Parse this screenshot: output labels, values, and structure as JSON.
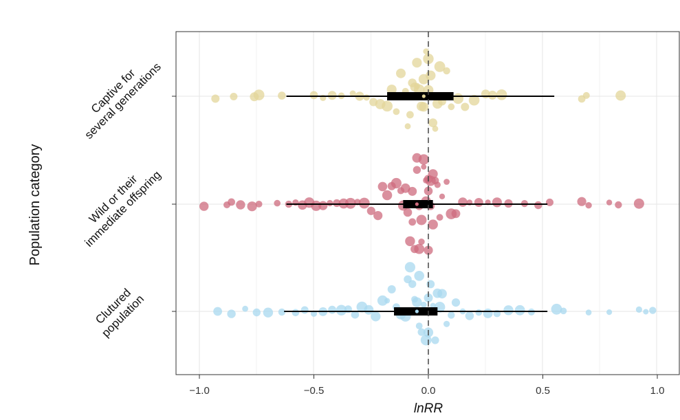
{
  "chart_data": {
    "type": "scatter",
    "subtype": "orchard-plot",
    "xlabel": "lnRR",
    "ylabel": "Population category",
    "xlim": [
      -1.1,
      1.05
    ],
    "x_ticks": [
      -1.0,
      -0.5,
      0.0,
      0.5,
      1.0
    ],
    "x_tick_labels": [
      "−1.0",
      "−0.5",
      "0.0",
      "0.5",
      "1.0"
    ],
    "grid": true,
    "reference_line": 0,
    "categories": [
      "Captive for several generations",
      "Wild or their immediate offspring",
      "Clutured population"
    ],
    "category_label_lines": [
      [
        "Captive for",
        "several generations"
      ],
      [
        "Wild or their",
        "immediate offspring"
      ],
      [
        "Clutured",
        "population"
      ]
    ],
    "series": [
      {
        "color": "#e3d59a",
        "estimate": -0.02,
        "ci": [
          -0.18,
          0.11
        ],
        "pi": [
          -0.62,
          0.55
        ],
        "points": [
          -0.93,
          -0.85,
          -0.76,
          -0.74,
          -0.64,
          -0.5,
          -0.46,
          -0.42,
          -0.38,
          -0.33,
          -0.3,
          -0.27,
          -0.24,
          -0.21,
          -0.18,
          -0.16,
          -0.14,
          -0.12,
          -0.1,
          -0.09,
          -0.08,
          -0.07,
          -0.06,
          -0.05,
          -0.05,
          -0.04,
          -0.03,
          -0.02,
          -0.02,
          -0.01,
          0.0,
          0.0,
          0.01,
          0.02,
          0.03,
          0.04,
          0.05,
          0.06,
          0.08,
          0.1,
          0.13,
          0.16,
          0.2,
          0.25,
          0.28,
          0.32,
          0.67,
          0.69,
          0.84
        ]
      },
      {
        "color": "#cd6b7d",
        "estimate": -0.05,
        "ci": [
          -0.11,
          0.02
        ],
        "pi": [
          -0.62,
          0.52
        ],
        "points": [
          -0.98,
          -0.88,
          -0.86,
          -0.82,
          -0.77,
          -0.74,
          -0.66,
          -0.61,
          -0.58,
          -0.55,
          -0.52,
          -0.49,
          -0.46,
          -0.43,
          -0.4,
          -0.37,
          -0.34,
          -0.31,
          -0.28,
          -0.25,
          -0.22,
          -0.2,
          -0.18,
          -0.16,
          -0.14,
          -0.12,
          -0.11,
          -0.1,
          -0.09,
          -0.08,
          -0.07,
          -0.07,
          -0.06,
          -0.05,
          -0.05,
          -0.04,
          -0.04,
          -0.03,
          -0.03,
          -0.02,
          -0.02,
          -0.01,
          -0.01,
          0.0,
          0.0,
          0.0,
          0.01,
          0.01,
          0.02,
          0.02,
          0.03,
          0.04,
          0.05,
          0.06,
          0.08,
          0.1,
          0.12,
          0.15,
          0.18,
          0.22,
          0.26,
          0.3,
          0.35,
          0.42,
          0.48,
          0.53,
          0.67,
          0.7,
          0.79,
          0.83,
          0.92
        ]
      },
      {
        "color": "#a8d8ef",
        "estimate": -0.05,
        "ci": [
          -0.15,
          0.04
        ],
        "pi": [
          -0.63,
          0.52
        ],
        "points": [
          -0.92,
          -0.86,
          -0.8,
          -0.75,
          -0.7,
          -0.64,
          -0.58,
          -0.54,
          -0.5,
          -0.46,
          -0.42,
          -0.38,
          -0.35,
          -0.32,
          -0.29,
          -0.26,
          -0.23,
          -0.2,
          -0.18,
          -0.16,
          -0.14,
          -0.12,
          -0.1,
          -0.09,
          -0.08,
          -0.07,
          -0.06,
          -0.05,
          -0.04,
          -0.04,
          -0.03,
          -0.02,
          -0.02,
          -0.01,
          0.0,
          0.0,
          0.01,
          0.02,
          0.03,
          0.04,
          0.05,
          0.06,
          0.08,
          0.1,
          0.12,
          0.15,
          0.18,
          0.22,
          0.26,
          0.3,
          0.35,
          0.4,
          0.45,
          0.56,
          0.59,
          0.7,
          0.79,
          0.92,
          0.95,
          0.98
        ]
      }
    ]
  }
}
